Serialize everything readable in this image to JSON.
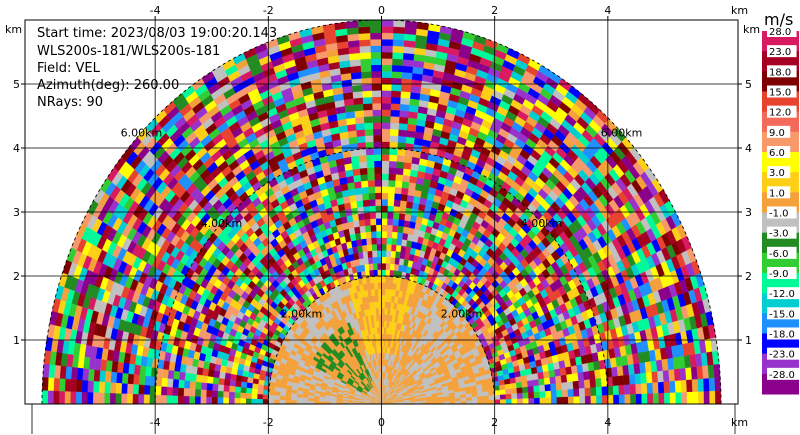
{
  "info": {
    "start_time": "Start time: 2023/08/03 19:00:20.143",
    "instrument": "WLS200s-181/WLS200s-181",
    "field": "Field: VEL",
    "azimuth": "Azimuth(deg): 260.00",
    "nrays": "NRays: 90"
  },
  "chart_data": {
    "type": "heatmap",
    "projection": "RHI half-disc (range-height)",
    "x_unit": "km",
    "y_unit": "km",
    "xlim": [
      -6.3,
      6.3
    ],
    "ylim": [
      0,
      6.0
    ],
    "x_ticks": [
      -4,
      -2,
      0,
      2,
      4
    ],
    "y_ticks": [
      1,
      2,
      3,
      4,
      5
    ],
    "range_rings_km": [
      2,
      4,
      6
    ],
    "ring_labels": [
      "2.00km",
      "4.00km",
      "6.00km"
    ],
    "max_range_km": 6,
    "grid": true,
    "colorbar": {
      "unit": "m/s",
      "ticks": [
        "28.0",
        "23.0",
        "18.0",
        "15.0",
        "12.0",
        "9.0",
        "6.0",
        "3.0",
        "1.0",
        "-1.0",
        "-3.0",
        "-6.0",
        "-9.0",
        "-12.0",
        "-15.0",
        "-18.0",
        "-23.0",
        "-28.0"
      ],
      "colors": [
        "#d81b60",
        "#a50021",
        "#7f0000",
        "#e8432f",
        "#f36a5a",
        "#f7996b",
        "#ffff00",
        "#fdd017",
        "#f4a13c",
        "#c0c0c0",
        "#228b22",
        "#32cd32",
        "#00fa9a",
        "#00ced1",
        "#1e90ff",
        "#0000ff",
        "#9932cc",
        "#8b008b"
      ]
    },
    "near_field_colors": [
      "#c0c0c0",
      "#f4a13c",
      "#fdd017",
      "#228b22"
    ],
    "far_field_colors": [
      "#a50021",
      "#d81b60",
      "#7f0000",
      "#e8432f",
      "#f7996b",
      "#f4a13c",
      "#ffff00",
      "#fdd017",
      "#c0c0c0",
      "#228b22",
      "#32cd32",
      "#00fa9a",
      "#00ced1",
      "#1e90ff",
      "#0000ff",
      "#9932cc",
      "#8b008b"
    ]
  }
}
